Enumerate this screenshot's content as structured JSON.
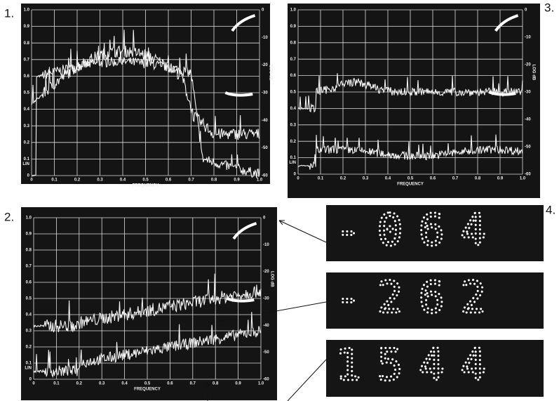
{
  "figures": [
    {
      "label": "1.",
      "x_title": "FREQUENCY",
      "x_ticks": [
        "0",
        "0.1",
        "0.2",
        "0.3",
        "0.4",
        "0.5",
        "0.6",
        "0.7",
        "0.8",
        "0.9",
        "1.0"
      ],
      "left_title": "LIN",
      "left_ticks": [
        "1.0",
        "0.9",
        "0.8",
        "0.7",
        "0.6",
        "0.5",
        "0.4",
        "0.3",
        "0.2",
        "0.1",
        "0"
      ],
      "right_title": "LOG dB",
      "right_ticks": [
        "0",
        "-10",
        "-20",
        "-30",
        "-40",
        "-50",
        "-60"
      ]
    },
    {
      "label": "2.",
      "x_title": "FREQUENCY",
      "x_ticks": [
        "0",
        "0.1",
        "0.2",
        "0.3",
        "0.4",
        "0.5",
        "0.6",
        "0.7",
        "0.8",
        "0.9",
        "1.0"
      ],
      "left_title": "LIN",
      "left_ticks": [
        "1.0",
        "0.9",
        "0.8",
        "0.7",
        "0.6",
        "0.5",
        "0.4",
        "0.3",
        "0.2",
        "0.1",
        "0"
      ],
      "right_title": "LOG dB",
      "right_ticks": [
        "0",
        "-10",
        "-20",
        "-30",
        "-40",
        "-50",
        "-60"
      ]
    },
    {
      "label": "3.",
      "x_title": "FREQUENCY",
      "x_ticks": [
        "0",
        "0.1",
        "0.2",
        "0.3",
        "0.4",
        "0.5",
        "0.6",
        "0.7",
        "0.8",
        "0.9",
        "1.0"
      ],
      "left_title": "LIN",
      "left_ticks": [
        "1.0",
        "0.9",
        "0.8",
        "0.7",
        "0.6",
        "0.5",
        "0.4",
        "0.3",
        "0.2",
        "0.1",
        "0"
      ],
      "right_title": "LOG dB",
      "right_ticks": [
        "0",
        "-10",
        "-20",
        "-30",
        "-40",
        "-50",
        "-60"
      ]
    }
  ],
  "displays": {
    "label": "4.",
    "readings": [
      "-064",
      "-262",
      "1544"
    ]
  }
}
